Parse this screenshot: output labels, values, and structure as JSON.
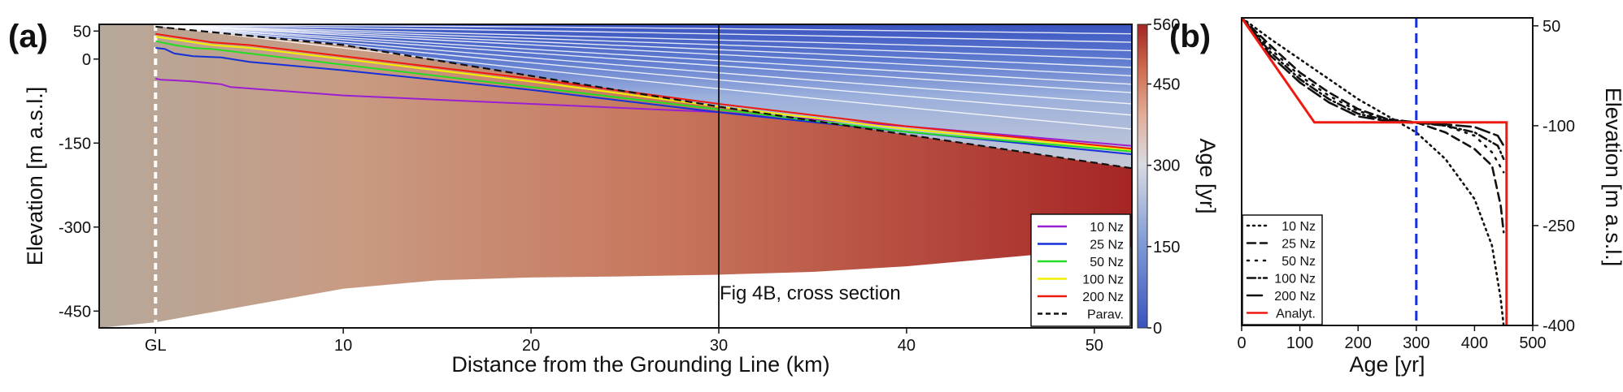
{
  "panel_labels": {
    "a": "(a)",
    "b": "(b)"
  },
  "colors": {
    "10 Nz": "#9b1fd0",
    "25 Nz": "#1430d8",
    "50 Nz": "#22dd22",
    "100 Nz": "#f4f000",
    "200 Nz": "#ee1a10",
    "Parav.": "#111111",
    "analytic": "#ee1a10",
    "vline_b": "#1a2fe0",
    "colormap": [
      "#3a54c0",
      "#7d98d6",
      "#c9cfe0",
      "#e0b3a0",
      "#cf6d50",
      "#a52424"
    ]
  },
  "chart_data": [
    {
      "type": "line",
      "panel": "(a)",
      "xlabel": "Distance from the Grounding Line (km)",
      "ylabel": "Elevation [m a.s.l.]",
      "xlim": [
        -3,
        52
      ],
      "ylim": [
        -480,
        62
      ],
      "x_ticks": [
        0,
        10,
        20,
        30,
        40,
        50
      ],
      "x_tick_labels": [
        "GL",
        "10",
        "20",
        "30",
        "40",
        "50"
      ],
      "y_ticks": [
        50,
        0,
        -150,
        -300,
        -450
      ],
      "y_tick_labels": [
        "50",
        "0",
        "-150",
        "-300",
        "-450"
      ],
      "colorbar": {
        "label": "Age [yr]",
        "range": [
          0,
          560
        ],
        "ticks": [
          0,
          150,
          300,
          450,
          560
        ],
        "tick_labels": [
          "0",
          "150",
          "300",
          "450",
          "560"
        ]
      },
      "annotation": {
        "text": "Fig 4B, cross section",
        "x": 30
      },
      "ice_surface": {
        "x": [
          0,
          52
        ],
        "y": [
          62,
          62
        ]
      },
      "ice_base": {
        "x": [
          -3,
          0,
          5,
          10,
          15,
          20,
          25,
          30,
          35,
          40,
          45,
          50,
          52
        ],
        "y": [
          -480,
          -470,
          -440,
          -410,
          -395,
          -390,
          -388,
          -385,
          -380,
          -370,
          -355,
          -340,
          -336
        ]
      },
      "series": [
        {
          "name": "10 Nz",
          "style": "solid",
          "x": [
            0,
            0.3,
            1,
            2,
            3.5,
            4,
            10,
            20,
            30,
            40,
            52
          ],
          "y": [
            -35,
            -37,
            -38,
            -40,
            -45,
            -50,
            -65,
            -80,
            -95,
            -120,
            -155
          ]
        },
        {
          "name": "25 Nz",
          "style": "solid",
          "x": [
            0,
            0.5,
            1,
            2,
            3.5,
            5,
            10,
            20,
            30,
            40,
            52
          ],
          "y": [
            20,
            18,
            10,
            5,
            3,
            -5,
            -20,
            -55,
            -95,
            -130,
            -170
          ]
        },
        {
          "name": "50 Nz",
          "style": "solid",
          "x": [
            0,
            1,
            2,
            3,
            5,
            10,
            20,
            30,
            40,
            52
          ],
          "y": [
            32,
            25,
            20,
            18,
            10,
            -10,
            -50,
            -90,
            -130,
            -165
          ]
        },
        {
          "name": "100 Nz",
          "style": "solid",
          "x": [
            0,
            1,
            2,
            3,
            5,
            10,
            20,
            30,
            40,
            52
          ],
          "y": [
            40,
            35,
            30,
            25,
            20,
            0,
            -40,
            -85,
            -125,
            -162
          ]
        },
        {
          "name": "200 Nz",
          "style": "solid",
          "x": [
            0,
            1,
            2,
            3,
            5,
            10,
            20,
            30,
            40,
            52
          ],
          "y": [
            45,
            40,
            35,
            30,
            25,
            5,
            -35,
            -80,
            -120,
            -160
          ]
        },
        {
          "name": "Parav.",
          "style": "dashed",
          "x": [
            0,
            10,
            20,
            30,
            40,
            52
          ],
          "y": [
            58,
            25,
            -30,
            -85,
            -135,
            -195
          ]
        }
      ],
      "isochrones_y_at_52km": [
        45,
        30,
        15,
        0,
        -15,
        -30,
        -45,
        -60,
        -80,
        -100,
        -125
      ]
    },
    {
      "type": "line",
      "panel": "(b)",
      "xlabel": "Age [yr]",
      "ylabel": "Elevation [m a.s.l.]",
      "xlim": [
        0,
        500
      ],
      "ylim": [
        -400,
        62
      ],
      "x_ticks": [
        0,
        100,
        200,
        300,
        400,
        500
      ],
      "x_tick_labels": [
        "0",
        "100",
        "200",
        "300",
        "400",
        "500"
      ],
      "y_ticks": [
        50,
        -100,
        -250,
        -400
      ],
      "y_tick_labels": [
        "50",
        "-100",
        "-250",
        "-400"
      ],
      "vline": {
        "x": 300
      },
      "series": [
        {
          "name": "10 Nz",
          "style": "dotted",
          "x": [
            0,
            50,
            100,
            150,
            200,
            250,
            300,
            350,
            400,
            430,
            445,
            450
          ],
          "y": [
            62,
            30,
            0,
            -30,
            -60,
            -85,
            -110,
            -150,
            -210,
            -280,
            -360,
            -400
          ]
        },
        {
          "name": "25 Nz",
          "style": "dashed",
          "x": [
            0,
            50,
            100,
            150,
            200,
            250,
            300,
            350,
            400,
            430,
            445,
            450
          ],
          "y": [
            62,
            20,
            -20,
            -50,
            -75,
            -90,
            -95,
            -110,
            -135,
            -160,
            -220,
            -260
          ]
        },
        {
          "name": "50 Nz",
          "style": "dot",
          "x": [
            0,
            50,
            100,
            150,
            200,
            250,
            300,
            350,
            400,
            430,
            450
          ],
          "y": [
            62,
            15,
            -25,
            -55,
            -78,
            -90,
            -95,
            -100,
            -115,
            -140,
            -170
          ]
        },
        {
          "name": "100 Nz",
          "style": "dashdot",
          "x": [
            0,
            50,
            100,
            150,
            200,
            250,
            300,
            350,
            400,
            440,
            450
          ],
          "y": [
            62,
            10,
            -30,
            -60,
            -82,
            -92,
            -95,
            -100,
            -110,
            -130,
            -150
          ]
        },
        {
          "name": "200 Nz",
          "style": "longdash",
          "x": [
            0,
            50,
            100,
            150,
            200,
            250,
            300,
            350,
            400,
            440,
            450
          ],
          "y": [
            62,
            5,
            -35,
            -65,
            -86,
            -93,
            -96,
            -98,
            -102,
            -115,
            -130
          ]
        },
        {
          "name": "Analyt.",
          "style": "solid",
          "x": [
            0,
            125,
            455,
            455
          ],
          "y": [
            62,
            -95,
            -95,
            -400
          ]
        }
      ]
    }
  ]
}
